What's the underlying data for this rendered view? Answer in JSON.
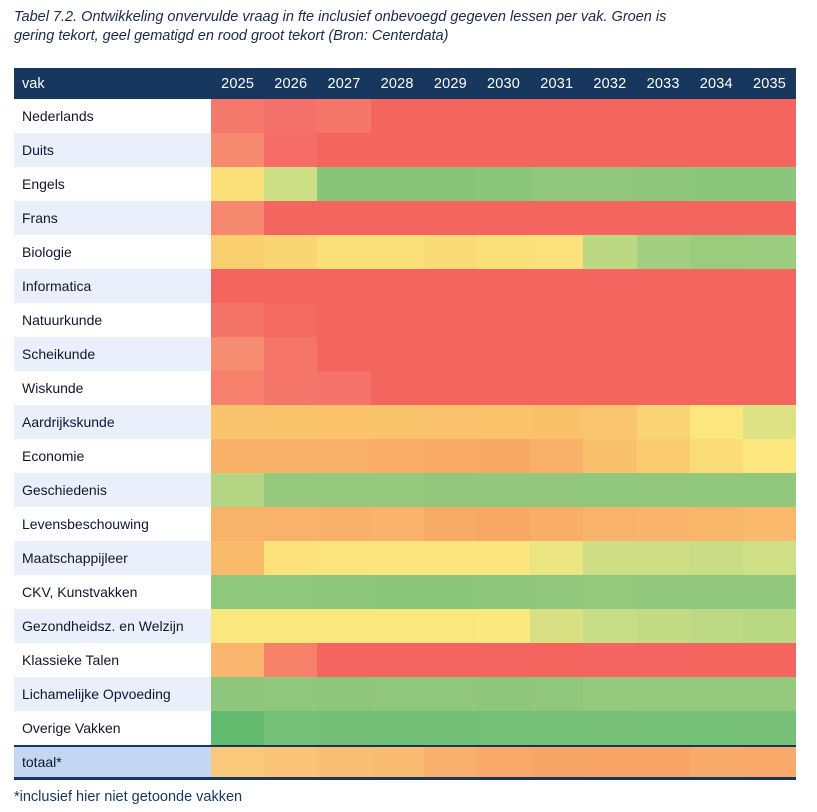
{
  "title": {
    "line1": "Tabel 7.2. Ontwikkeling onvervulde vraag in fte inclusief onbevoegd gegeven lessen per vak. Groen is",
    "line2": "gering tekort, geel gematigd en rood groot tekort (Bron: Centerdata)"
  },
  "table": {
    "header": {
      "vak_label": "vak"
    }
  },
  "footnote": "*inclusief hier niet getoonde vakken",
  "colors": {
    "header_bg": "#17375E",
    "header_text": "#FFFFFF",
    "row_alt_bg": "#E9F0FB",
    "total_label_bg": "#C3D6F2",
    "border": "#17375E",
    "legend_green": "#74C077",
    "legend_yellow": "#FBE07A",
    "legend_red": "#F4655F"
  },
  "chart_data": {
    "type": "heatmap",
    "title": "Ontwikkeling onvervulde vraag in fte inclusief onbevoegd gegeven lessen per vak",
    "source": "Bron: Centerdata",
    "legend": {
      "groen": "gering tekort",
      "geel": "gematigd tekort",
      "rood": "groot tekort"
    },
    "x": [
      "2025",
      "2026",
      "2027",
      "2028",
      "2029",
      "2030",
      "2031",
      "2032",
      "2033",
      "2034",
      "2035"
    ],
    "rows": [
      {
        "label": "Nederlands",
        "total": false,
        "levels": [
          "rood",
          "rood",
          "rood",
          "rood",
          "rood",
          "rood",
          "rood",
          "rood",
          "rood",
          "rood",
          "rood"
        ],
        "colors": [
          "#F5786C",
          "#F4716A",
          "#F5766B",
          "#F4655F",
          "#F4655F",
          "#F4655F",
          "#F4655F",
          "#F4655F",
          "#F4655F",
          "#F4655F",
          "#F4655F"
        ]
      },
      {
        "label": "Duits",
        "total": false,
        "levels": [
          "rood",
          "rood",
          "rood",
          "rood",
          "rood",
          "rood",
          "rood",
          "rood",
          "rood",
          "rood",
          "rood"
        ],
        "colors": [
          "#F78B70",
          "#F56D66",
          "#F4655F",
          "#F4655F",
          "#F4655F",
          "#F4655F",
          "#F4655F",
          "#F4655F",
          "#F4655F",
          "#F4655F",
          "#F4655F"
        ]
      },
      {
        "label": "Engels",
        "total": false,
        "levels": [
          "geel",
          "geelgroen",
          "groen",
          "groen",
          "groen",
          "groen",
          "groen",
          "groen",
          "groen",
          "groen",
          "groen"
        ],
        "colors": [
          "#FBDF79",
          "#CDDF85",
          "#89C47B",
          "#89C47B",
          "#89C47B",
          "#8BC57C",
          "#90C77D",
          "#90C77D",
          "#8EC67C",
          "#8CC67C",
          "#8CC67C"
        ]
      },
      {
        "label": "Frans",
        "total": false,
        "levels": [
          "rood",
          "rood",
          "rood",
          "rood",
          "rood",
          "rood",
          "rood",
          "rood",
          "rood",
          "rood",
          "rood"
        ],
        "colors": [
          "#F6886F",
          "#F4655F",
          "#F4655F",
          "#F4655F",
          "#F4655F",
          "#F4655F",
          "#F4655F",
          "#F4655F",
          "#F4655F",
          "#F4655F",
          "#F4655F"
        ]
      },
      {
        "label": "Biologie",
        "total": false,
        "levels": [
          "geel",
          "geel",
          "geel",
          "geel",
          "geel",
          "geel",
          "geel",
          "groen",
          "groen",
          "groen",
          "groen"
        ],
        "colors": [
          "#F9CF70",
          "#FAD573",
          "#FBDF79",
          "#FBE07A",
          "#FBDB76",
          "#FBDF79",
          "#FBE17B",
          "#BCD883",
          "#A3CF80",
          "#9BCC7E",
          "#9CCC7F"
        ]
      },
      {
        "label": "Informatica",
        "total": false,
        "levels": [
          "rood",
          "rood",
          "rood",
          "rood",
          "rood",
          "rood",
          "rood",
          "rood",
          "rood",
          "rood",
          "rood"
        ],
        "colors": [
          "#F4655F",
          "#F4655F",
          "#F4655F",
          "#F4655F",
          "#F4655F",
          "#F4655F",
          "#F4655F",
          "#F4655F",
          "#F4655F",
          "#F4655F",
          "#F4655F"
        ]
      },
      {
        "label": "Natuurkunde",
        "total": false,
        "levels": [
          "rood",
          "rood",
          "rood",
          "rood",
          "rood",
          "rood",
          "rood",
          "rood",
          "rood",
          "rood",
          "rood"
        ],
        "colors": [
          "#F5746A",
          "#F46A63",
          "#F4655F",
          "#F4655F",
          "#F4655F",
          "#F4655F",
          "#F4655F",
          "#F4655F",
          "#F4655F",
          "#F4655F",
          "#F4655F"
        ]
      },
      {
        "label": "Scheikunde",
        "total": false,
        "levels": [
          "rood",
          "rood",
          "rood",
          "rood",
          "rood",
          "rood",
          "rood",
          "rood",
          "rood",
          "rood",
          "rood"
        ],
        "colors": [
          "#F78D70",
          "#F57569",
          "#F4655F",
          "#F4655F",
          "#F4655F",
          "#F4655F",
          "#F4655F",
          "#F4655F",
          "#F4655F",
          "#F4655F",
          "#F4655F"
        ]
      },
      {
        "label": "Wiskunde",
        "total": false,
        "levels": [
          "rood",
          "rood",
          "rood",
          "rood",
          "rood",
          "rood",
          "rood",
          "rood",
          "rood",
          "rood",
          "rood"
        ],
        "colors": [
          "#F7806D",
          "#F5766B",
          "#F5736A",
          "#F4655F",
          "#F4655F",
          "#F4655F",
          "#F4655F",
          "#F4655F",
          "#F4655F",
          "#F4655F",
          "#F4655F"
        ]
      },
      {
        "label": "Aardrijkskunde",
        "total": false,
        "levels": [
          "oranje",
          "oranje",
          "oranje",
          "oranje",
          "oranje",
          "oranje",
          "oranje",
          "oranje",
          "geel",
          "geel",
          "geelgroen"
        ],
        "colors": [
          "#FAC46D",
          "#FAC46D",
          "#FAC36C",
          "#FAC46D",
          "#FAC26C",
          "#FAC36C",
          "#FAC16B",
          "#FAC56E",
          "#FBD476",
          "#FCE67E",
          "#DFE284"
        ]
      },
      {
        "label": "Economie",
        "total": false,
        "levels": [
          "oranje",
          "oranje",
          "oranje",
          "oranje",
          "oranje",
          "oranje",
          "oranje",
          "oranje",
          "geel",
          "geel",
          "geel"
        ],
        "colors": [
          "#F9B169",
          "#F9B069",
          "#F9B169",
          "#F9AE68",
          "#F8AA66",
          "#F8A966",
          "#F9B069",
          "#FAC16C",
          "#FACB6F",
          "#FBDD78",
          "#FCE77E"
        ]
      },
      {
        "label": "Geschiedenis",
        "total": false,
        "levels": [
          "geelgroen",
          "groen",
          "groen",
          "groen",
          "groen",
          "groen",
          "groen",
          "groen",
          "groen",
          "groen",
          "groen"
        ],
        "colors": [
          "#B4D583",
          "#95C97D",
          "#93C87D",
          "#93C87D",
          "#90C77C",
          "#92C87D",
          "#90C77C",
          "#8FC77C",
          "#92C87D",
          "#92C87D",
          "#92C87D"
        ]
      },
      {
        "label": "Levensbeschouwing",
        "total": false,
        "levels": [
          "oranje",
          "oranje",
          "oranje",
          "oranje",
          "oranje",
          "oranje",
          "oranje",
          "oranje",
          "oranje",
          "oranje",
          "oranje"
        ],
        "colors": [
          "#F9B269",
          "#F9B269",
          "#F9B169",
          "#F9B36A",
          "#F8AB66",
          "#F8A864",
          "#F9AE68",
          "#F9B26A",
          "#F9B36A",
          "#F9B66B",
          "#FAB96C"
        ]
      },
      {
        "label": "Maatschappijleer",
        "total": false,
        "levels": [
          "oranje",
          "geel",
          "geel",
          "geel",
          "geel",
          "geel",
          "geelgroen",
          "geelgroen",
          "geelgroen",
          "geelgroen",
          "geelgroen"
        ],
        "colors": [
          "#F9BA6C",
          "#FBE27A",
          "#FBE47C",
          "#FBE57C",
          "#FBE57C",
          "#FBE67D",
          "#EBE682",
          "#CEDE85",
          "#CEDE85",
          "#C9DC86",
          "#CFDF86"
        ]
      },
      {
        "label": "CKV, Kunstvakken",
        "total": false,
        "levels": [
          "groen",
          "groen",
          "groen",
          "groen",
          "groen",
          "groen",
          "groen",
          "groen",
          "groen",
          "groen",
          "groen"
        ],
        "colors": [
          "#8FC77D",
          "#8FC77D",
          "#8EC67C",
          "#8CC67C",
          "#8CC67C",
          "#8EC67C",
          "#90C77D",
          "#93C87D",
          "#90C77D",
          "#90C77D",
          "#92C87D"
        ]
      },
      {
        "label": "Gezondheidsz. en Welzijn",
        "total": false,
        "levels": [
          "geel",
          "geel",
          "geel",
          "geel",
          "geel",
          "geel",
          "geelgroen",
          "geelgroen",
          "geelgroen",
          "geelgroen",
          "geelgroen"
        ],
        "colors": [
          "#FAE77D",
          "#FAE77D",
          "#FAE87E",
          "#FAE87E",
          "#FAE87E",
          "#FAE97F",
          "#D8E083",
          "#C6DC85",
          "#C3DB85",
          "#BED985",
          "#B9D884"
        ]
      },
      {
        "label": "Klassieke Talen",
        "total": false,
        "levels": [
          "oranje",
          "rood",
          "rood",
          "rood",
          "rood",
          "rood",
          "rood",
          "rood",
          "rood",
          "rood",
          "rood"
        ],
        "colors": [
          "#FAB66F",
          "#F68168",
          "#F4655F",
          "#F4655F",
          "#F4655F",
          "#F4655F",
          "#F4655F",
          "#F4655F",
          "#F4655F",
          "#F4655F",
          "#F4655F"
        ]
      },
      {
        "label": "Lichamelijke Opvoeding",
        "total": false,
        "levels": [
          "groen",
          "groen",
          "groen",
          "groen",
          "groen",
          "groen",
          "groen",
          "groen",
          "groen",
          "groen",
          "groen"
        ],
        "colors": [
          "#8DC67C",
          "#8FC77D",
          "#8EC67C",
          "#90C77D",
          "#90C77D",
          "#8EC67C",
          "#90C77D",
          "#95C97E",
          "#93C87D",
          "#93C87D",
          "#93C87D"
        ]
      },
      {
        "label": "Overige Vakken",
        "total": false,
        "levels": [
          "groen",
          "groen",
          "groen",
          "groen",
          "groen",
          "groen",
          "groen",
          "groen",
          "groen",
          "groen",
          "groen"
        ],
        "colors": [
          "#63BB70",
          "#74C077",
          "#73BF77",
          "#71BE76",
          "#72BF76",
          "#74C077",
          "#74C077",
          "#76C078",
          "#74C077",
          "#74C077",
          "#76C078"
        ]
      },
      {
        "label": "totaal*",
        "total": true,
        "levels": [
          "oranje",
          "oranje",
          "oranje",
          "oranje",
          "oranje",
          "oranje",
          "oranje",
          "oranje",
          "oranje",
          "oranje",
          "oranje"
        ],
        "colors": [
          "#FAC87B",
          "#FAC377",
          "#FABF74",
          "#FABC72",
          "#F9B06C",
          "#F9A96A",
          "#F8A668",
          "#F8A467",
          "#F8A467",
          "#F9AB6B",
          "#F9A96A"
        ]
      }
    ]
  }
}
